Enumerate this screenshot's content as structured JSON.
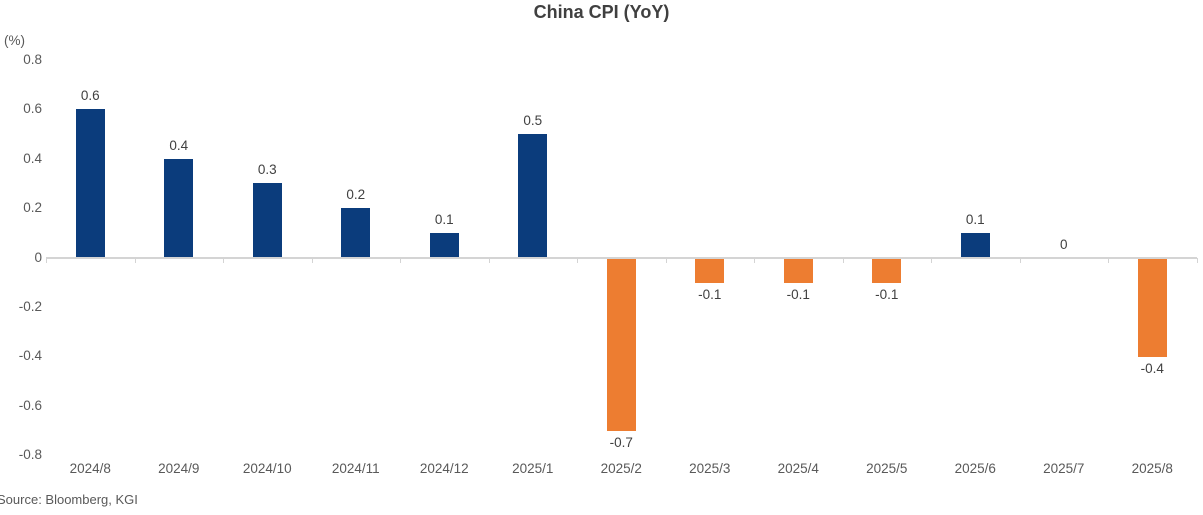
{
  "title": "China CPI (YoY)",
  "source_note": "Source: Bloomberg, KGI",
  "chart_data": {
    "type": "bar",
    "title": "China CPI (YoY)",
    "unit_label": "(%)",
    "xlabel": "",
    "ylabel": "(%)",
    "categories": [
      "2024/8",
      "2024/9",
      "2024/10",
      "2024/11",
      "2024/12",
      "2025/1",
      "2025/2",
      "2025/3",
      "2025/4",
      "2025/5",
      "2025/6",
      "2025/7",
      "2025/8"
    ],
    "values": [
      0.6,
      0.4,
      0.3,
      0.2,
      0.1,
      0.5,
      -0.7,
      -0.1,
      -0.1,
      -0.1,
      0.1,
      0,
      -0.4
    ],
    "data_labels": [
      "0.6",
      "0.4",
      "0.3",
      "0.2",
      "0.1",
      "0.5",
      "-0.7",
      "-0.1",
      "-0.1",
      "-0.1",
      "0.1",
      "0",
      "-0.4"
    ],
    "y_ticks": [
      "0.8",
      "0.6",
      "0.4",
      "0.2",
      "0",
      "-0.2",
      "-0.4",
      "-0.6",
      "-0.8"
    ],
    "ylim": [
      -0.8,
      0.8
    ],
    "grid": false,
    "legend": "none",
    "colors": {
      "positive_bar": "#0b3c7c",
      "negative_bar": "#ed7d31",
      "axis_line": "#d4d4d4",
      "tick_label": "#595959",
      "data_label": "#404040",
      "title": "#404040"
    }
  }
}
